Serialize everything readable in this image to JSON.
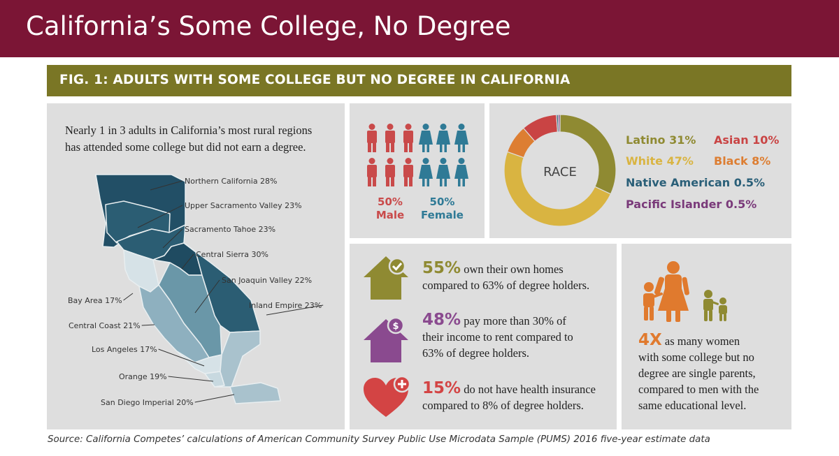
{
  "title": "California’s Some College, No Degree",
  "figure_title": "FIG. 1: ADULTS WITH SOME COLLEGE BUT NO DEGREE IN CALIFORNIA",
  "colors": {
    "title_bar": "#7b1535",
    "figure_bar": "#7a7625",
    "panel": "#dedede",
    "male": "#c94a4a",
    "female": "#2f7a96",
    "green": "#8f8a32",
    "purple": "#8a4a8f",
    "red": "#d34444",
    "orange": "#e07a2e"
  },
  "map": {
    "intro_line1": "Nearly 1 in 3 adults in California’s most rural regions",
    "intro_line2": "has attended some college but did not earn a degree."
  },
  "chart_data": [
    {
      "type": "map",
      "title": "Nearly 1 in 3 adults in California’s most rural regions has attended some college but did not earn a degree.",
      "regions": [
        {
          "name": "Northern California",
          "value": 28,
          "label": "Northern California 28%"
        },
        {
          "name": "Upper Sacramento Valley",
          "value": 23,
          "label": "Upper Sacramento Valley 23%"
        },
        {
          "name": "Sacramento Tahoe",
          "value": 23,
          "label": "Sacramento Tahoe 23%"
        },
        {
          "name": "Central Sierra",
          "value": 30,
          "label": "Central Sierra 30%"
        },
        {
          "name": "San Joaquin Valley",
          "value": 22,
          "label": "San Joaquin Valley 22%"
        },
        {
          "name": "Inland Empire",
          "value": 23,
          "label": "Inland Empire 23%"
        },
        {
          "name": "Bay Area",
          "value": 17,
          "label": "Bay Area 17%"
        },
        {
          "name": "Central Coast",
          "value": 21,
          "label": "Central Coast 21%"
        },
        {
          "name": "Los Angeles",
          "value": 17,
          "label": "Los Angeles 17%"
        },
        {
          "name": "Orange",
          "value": 19,
          "label": "Orange 19%"
        },
        {
          "name": "San Diego Imperial",
          "value": 20,
          "label": "San Diego Imperial 20%"
        }
      ]
    },
    {
      "type": "pictogram",
      "categories": [
        "Male",
        "Female"
      ],
      "values": [
        50,
        50
      ],
      "labels": [
        "50%",
        "50%"
      ],
      "colors": [
        "#c94a4a",
        "#2f7a96"
      ]
    },
    {
      "type": "pie",
      "subtype": "donut",
      "center_label": "RACE",
      "categories": [
        "Latino",
        "White",
        "Native American",
        "Pacific Islander",
        "Asian",
        "Black"
      ],
      "values": [
        31,
        47,
        0.5,
        0.5,
        10,
        8
      ],
      "labels": [
        "Latino 31%",
        "White 47%",
        "Native American 0.5%",
        "Pacific Islander 0.5%",
        "Asian 10%",
        "Black 8%"
      ],
      "colors": [
        "#8f8a32",
        "#d9b441",
        "#2a5f78",
        "#7a3a7a",
        "#c94444",
        "#dd7e32"
      ]
    }
  ],
  "stats": [
    {
      "value": "55%",
      "line1": "own their own homes",
      "line2": "compared to 63% of degree holders.",
      "icon": "house-check-icon"
    },
    {
      "value": "48%",
      "line1": "pay more than 30% of",
      "line2": "their income to rent compared to",
      "line3": "63% of degree holders.",
      "icon": "house-dollar-icon"
    },
    {
      "value": "15%",
      "line1": "do not have health insurance",
      "line2": "compared to 8% of degree holders.",
      "icon": "heart-plus-icon"
    }
  ],
  "parents": {
    "value": "4X",
    "line1": "as many women",
    "line2": "with some college but no",
    "line3": "degree are single parents,",
    "line4": "compared to men with the",
    "line5": "same educational level."
  },
  "source": "Source: California Competes’ calculations of American Community Survey Public Use Microdata Sample (PUMS) 2016 five-year estimate data"
}
